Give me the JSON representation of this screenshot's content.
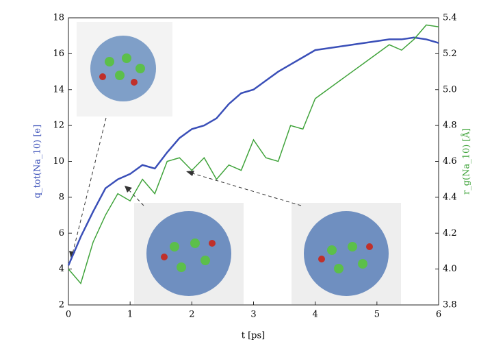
{
  "chart_data": {
    "type": "line",
    "x": [
      0,
      0.2,
      0.4,
      0.6,
      0.8,
      1.0,
      1.2,
      1.4,
      1.6,
      1.8,
      2.0,
      2.2,
      2.4,
      2.6,
      2.8,
      3.0,
      3.2,
      3.4,
      3.6,
      3.8,
      4.0,
      4.2,
      4.4,
      4.6,
      4.8,
      5.0,
      5.2,
      5.4,
      5.6,
      5.8,
      6.0
    ],
    "series": [
      {
        "name": "q_tot(Na_10) [e]",
        "color": "#3a4fb8",
        "axis": "y",
        "values": [
          4.2,
          5.8,
          7.2,
          8.5,
          9.0,
          9.3,
          9.8,
          9.6,
          10.5,
          11.3,
          11.8,
          12.0,
          12.4,
          13.2,
          13.8,
          14.0,
          14.5,
          15.0,
          15.4,
          15.8,
          16.2,
          16.3,
          16.4,
          16.5,
          16.6,
          16.7,
          16.8,
          16.8,
          16.9,
          16.8,
          16.6
        ]
      },
      {
        "name": "r_g(Na_10) [Å]",
        "color": "#3fa33a",
        "axis": "y2",
        "values": [
          4.0,
          3.92,
          4.15,
          4.3,
          4.42,
          4.38,
          4.5,
          4.42,
          4.6,
          4.62,
          4.55,
          4.62,
          4.5,
          4.58,
          4.55,
          4.72,
          4.62,
          4.6,
          4.8,
          4.78,
          4.95,
          5.0,
          5.05,
          5.1,
          5.15,
          5.2,
          5.25,
          5.22,
          5.28,
          5.36,
          5.35
        ]
      }
    ],
    "xlabel": "t [ps]",
    "xlim": [
      0,
      6
    ],
    "xticks": [
      0,
      1,
      2,
      3,
      4,
      5,
      6
    ],
    "ylim": [
      2,
      18
    ],
    "yticks": [
      2,
      4,
      6,
      8,
      10,
      12,
      14,
      16,
      18
    ],
    "y2lim": [
      3.8,
      5.4
    ],
    "y2ticks": [
      3.8,
      {
        "value": 4,
        "label": "4.0"
      },
      4.2,
      4.4,
      4.6,
      4.8,
      {
        "value": 5,
        "label": "5.0"
      },
      5.2,
      5.4
    ]
  }
}
